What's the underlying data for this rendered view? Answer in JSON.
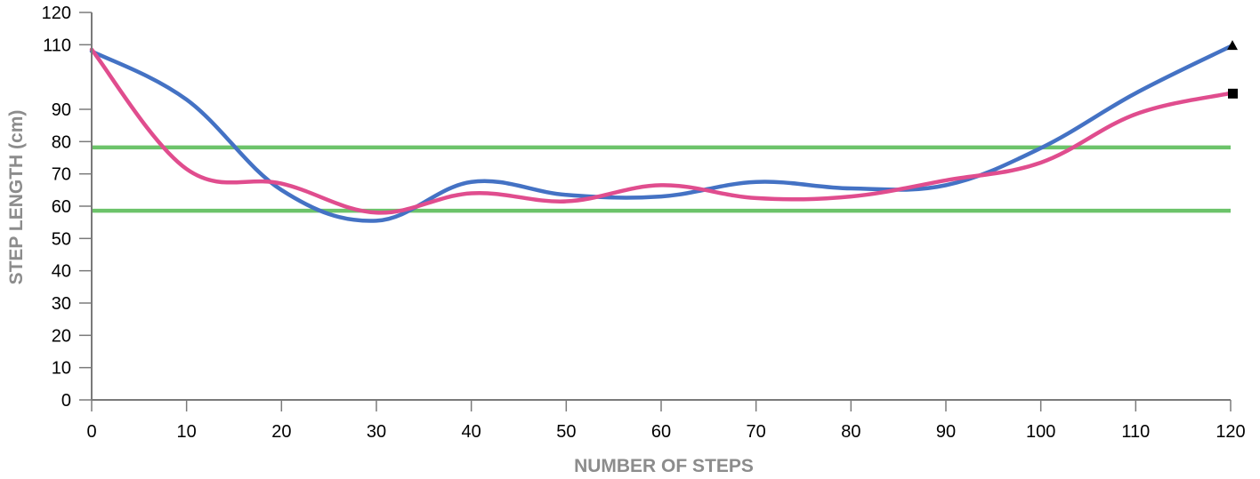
{
  "chart_data": {
    "type": "line",
    "xlabel": "NUMBER OF STEPS",
    "ylabel": "STEP LENGTH (cm)",
    "xlim": [
      0,
      120
    ],
    "ylim": [
      0,
      120
    ],
    "x_ticks": [
      "0",
      "10",
      "20",
      "30",
      "40",
      "50",
      "60",
      "70",
      "80",
      "90",
      "100",
      "110",
      "120"
    ],
    "y_ticks": [
      {
        "value": 0,
        "label": "0"
      },
      {
        "value": 10,
        "label": "10"
      },
      {
        "value": 20,
        "label": "20"
      },
      {
        "value": 30,
        "label": "30"
      },
      {
        "value": 40,
        "label": "40"
      },
      {
        "value": 50,
        "label": "50"
      },
      {
        "value": 60,
        "label": "60"
      },
      {
        "value": 70,
        "label": "70"
      },
      {
        "value": 80,
        "label": "80"
      },
      {
        "value": 90,
        "label": "90"
      },
      {
        "value": 110,
        "label": "110"
      },
      {
        "value": 120,
        "label": "120"
      }
    ],
    "grid": false,
    "series": [
      {
        "color": "#4472c4",
        "end_marker": "triangle",
        "x": [
          0,
          10,
          20,
          30,
          40,
          50,
          60,
          70,
          80,
          90,
          100,
          110,
          120
        ],
        "y": [
          108,
          93,
          65,
          55.5,
          67.5,
          63.5,
          63,
          67.5,
          65.5,
          66.5,
          78,
          95,
          109.5
        ]
      },
      {
        "color": "#e04d8e",
        "end_marker": "square",
        "x": [
          0,
          10,
          20,
          30,
          40,
          50,
          60,
          70,
          80,
          90,
          100,
          110,
          120
        ],
        "y": [
          108.5,
          71.5,
          67,
          58,
          64,
          61.5,
          66.5,
          62.5,
          63,
          68,
          73.5,
          88.5,
          95
        ]
      }
    ],
    "reference_lines": [
      {
        "y": 78.2,
        "color": "#6cc36a"
      },
      {
        "y": 58.6,
        "color": "#6cc36a"
      }
    ]
  }
}
